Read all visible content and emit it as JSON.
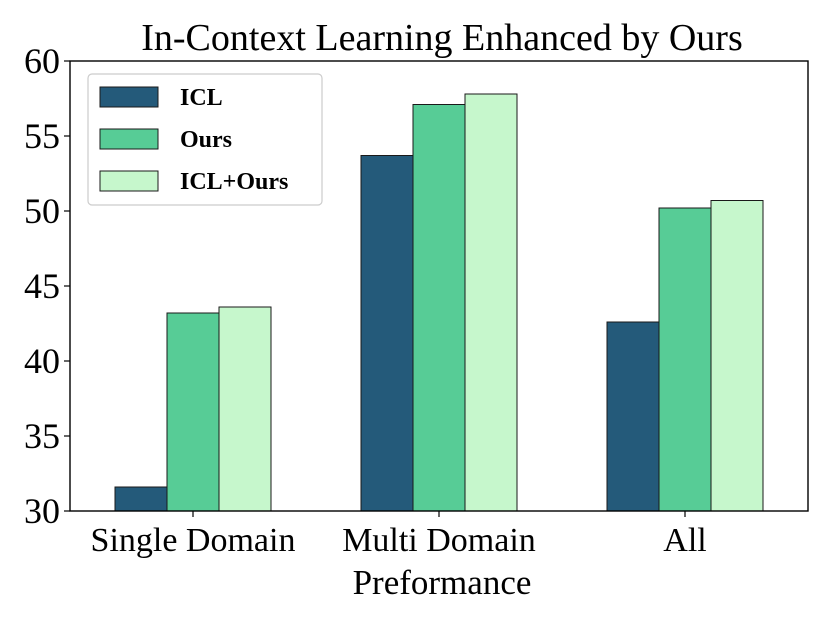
{
  "chart_data": {
    "type": "bar",
    "title": "In-Context Learning Enhanced by Ours",
    "xlabel": "Preformance",
    "ylabel": "",
    "categories": [
      "Single Domain",
      "Multi Domain",
      "All"
    ],
    "series": [
      {
        "name": "ICL",
        "values": [
          31.6,
          53.7,
          42.6
        ],
        "color": "#245a7a"
      },
      {
        "name": "Ours",
        "values": [
          43.2,
          57.1,
          50.2
        ],
        "color": "#57cc96"
      },
      {
        "name": "ICL+Ours",
        "values": [
          43.6,
          57.8,
          50.7
        ],
        "color": "#c6f7cc"
      }
    ],
    "ylim": [
      30,
      60
    ],
    "yticks": [
      30,
      35,
      40,
      45,
      50,
      55,
      60
    ],
    "grid": false,
    "legend_position": "top-left"
  }
}
